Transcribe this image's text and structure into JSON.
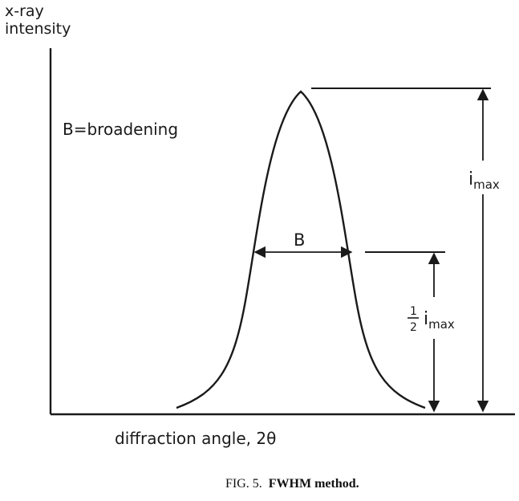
{
  "figure": {
    "y_axis_label_line1": "x-ray",
    "y_axis_label_line2": "intensity",
    "x_axis_label": "diffraction angle, 2θ",
    "legend_text": "B=broadening",
    "width_label": "B",
    "imax_label_main": "i",
    "imax_label_sub": "max",
    "half_label_num": "1",
    "half_label_den": "2",
    "half_label_main": "i",
    "half_label_sub": "max"
  },
  "caption": {
    "prefix": "FIG. 5.",
    "title": "FWHM method."
  },
  "colors": {
    "ink": "#1a1a1a",
    "background": "#ffffff"
  }
}
